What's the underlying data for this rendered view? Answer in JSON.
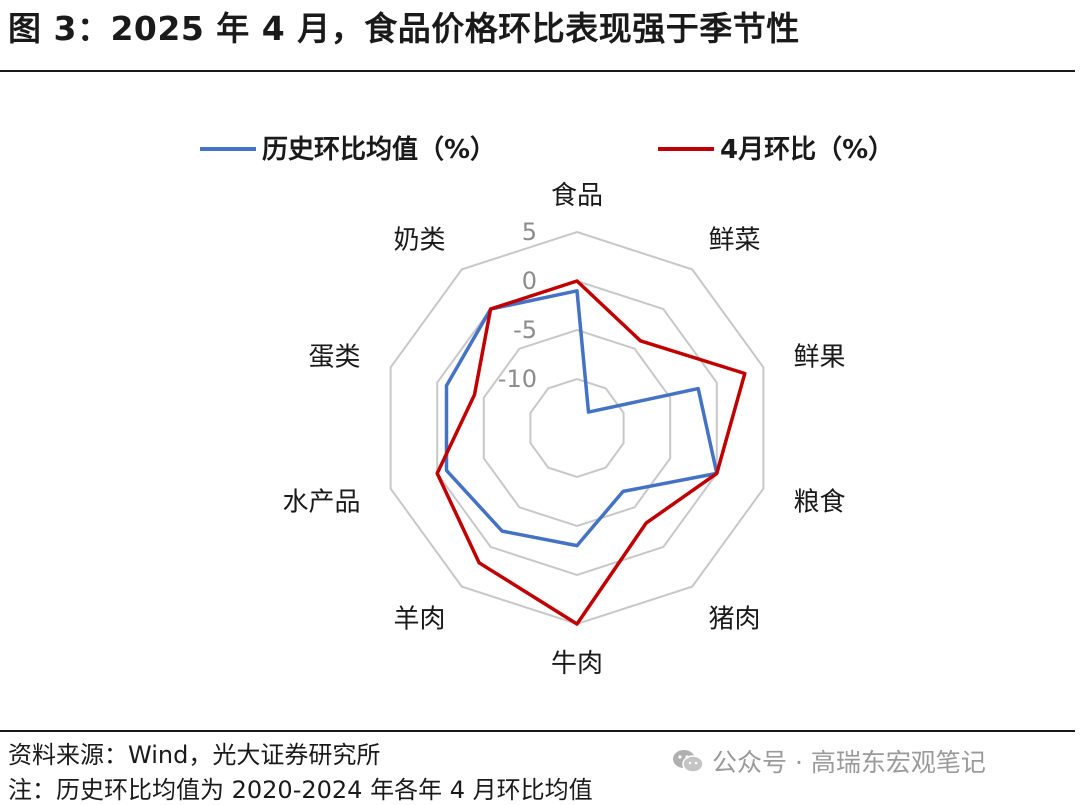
{
  "figure": {
    "title": "图 3：2025 年 4 月，食品价格环比表现强于季节性",
    "source": "资料来源：Wind，光大证券研究所",
    "note": "注：历史环比均值为 2020-2024 年各年 4 月环比均值",
    "watermark": "公众号 · 高瑞东宏观笔记"
  },
  "chart_data": {
    "type": "radar",
    "categories": [
      "食品",
      "鲜菜",
      "鲜果",
      "粮食",
      "猪肉",
      "牛肉",
      "羊肉",
      "水产品",
      "蛋类",
      "奶类"
    ],
    "rlim": [
      -15,
      5
    ],
    "ticks": [
      5,
      0,
      -5,
      -10
    ],
    "tick_labels": [
      "5",
      "0",
      "-5",
      "-10"
    ],
    "grid": true,
    "legend_position": "top",
    "series": [
      {
        "name": "历史环比均值（%）",
        "color": "#4472C4",
        "values": [
          -1,
          -13,
          -2,
          0,
          -7,
          -3,
          -2,
          -1,
          -1,
          0
        ]
      },
      {
        "name": "4月环比（%）",
        "color": "#C00000",
        "values": [
          0,
          -4,
          3,
          0,
          -3,
          5,
          2,
          0,
          -4,
          0
        ]
      }
    ]
  }
}
